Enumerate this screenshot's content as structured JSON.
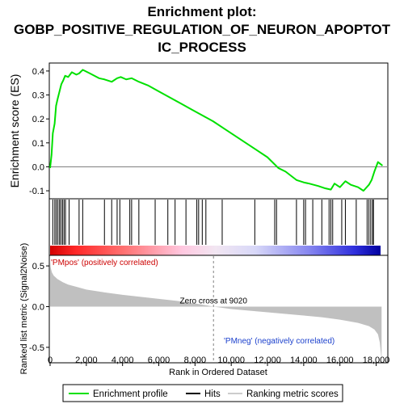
{
  "title_lines": [
    "Enrichment plot:",
    "GOBP_POSITIVE_REGULATION_OF_NEURON_APOPTOT",
    "IC_PROCESS"
  ],
  "colors": {
    "profile": "#00e000",
    "hits": "#000000",
    "metric_fill": "#c0c0c0",
    "zero_line": "#808080",
    "pos_text": "#cc0000",
    "neg_text": "#1a3fcc"
  },
  "chart_data": [
    {
      "type": "line",
      "name": "enrichment-profile",
      "ylabel": "Enrichment score (ES)",
      "xlim": [
        0,
        18600
      ],
      "ylim": [
        -0.13,
        0.43
      ],
      "yticks": [
        -0.1,
        0.0,
        0.1,
        0.2,
        0.3,
        0.4
      ],
      "ytick_labels": [
        "-0.1",
        "0.0",
        "0.1",
        "0.2",
        "0.3",
        "0.4"
      ],
      "x": [
        0,
        80,
        150,
        250,
        330,
        420,
        520,
        620,
        720,
        830,
        1000,
        1200,
        1450,
        1600,
        1800,
        2200,
        2700,
        3000,
        3400,
        3700,
        3900,
        4200,
        4500,
        4900,
        5400,
        6000,
        6600,
        7200,
        7800,
        8400,
        9000,
        9600,
        10200,
        10800,
        11400,
        12000,
        12400,
        12600,
        13000,
        13600,
        14000,
        14300,
        14800,
        15200,
        15500,
        15700,
        16000,
        16300,
        16600,
        17000,
        17300,
        17600,
        17750,
        17900,
        18100,
        18350
      ],
      "y": [
        -0.005,
        0.05,
        0.14,
        0.18,
        0.255,
        0.285,
        0.315,
        0.345,
        0.36,
        0.38,
        0.375,
        0.395,
        0.385,
        0.39,
        0.405,
        0.39,
        0.37,
        0.365,
        0.355,
        0.37,
        0.375,
        0.365,
        0.37,
        0.355,
        0.34,
        0.315,
        0.29,
        0.265,
        0.24,
        0.215,
        0.19,
        0.16,
        0.13,
        0.1,
        0.07,
        0.04,
        0.01,
        -0.005,
        -0.02,
        -0.055,
        -0.065,
        -0.07,
        -0.08,
        -0.09,
        -0.095,
        -0.07,
        -0.085,
        -0.06,
        -0.075,
        -0.085,
        -0.1,
        -0.075,
        -0.055,
        -0.02,
        0.02,
        0.005
      ],
      "hits_x": [
        150,
        260,
        340,
        430,
        520,
        600,
        690,
        770,
        850,
        1050,
        1600,
        1800,
        3000,
        3400,
        3700,
        3850,
        4400,
        4500,
        4900,
        5800,
        6500,
        6900,
        7500,
        8100,
        8200,
        8400,
        8600,
        9500,
        11300,
        12400,
        12500,
        13600,
        14000,
        14100,
        14500,
        15000,
        15400,
        15500,
        15600,
        16100,
        16300,
        16900,
        17500,
        17600,
        17700,
        17800,
        17850
      ]
    },
    {
      "type": "area",
      "name": "ranked-list-metric",
      "ylabel": "Ranked list metric (Signal2Noise)",
      "xlabel": "Rank in Ordered Dataset",
      "xlim": [
        0,
        18600
      ],
      "ylim": [
        -0.68,
        0.62
      ],
      "yticks": [
        -0.5,
        0.0,
        0.5
      ],
      "ytick_labels": [
        "-0.5",
        "0.0",
        "0.5"
      ],
      "xticks": [
        0,
        2000,
        4000,
        6000,
        8000,
        10000,
        12000,
        14000,
        16000,
        18000
      ],
      "xtick_labels": [
        "0",
        "2,000",
        "4,000",
        "6,000",
        "8,000",
        "10,000",
        "12,000",
        "14,000",
        "16,000",
        "18,000"
      ],
      "x": [
        0,
        30,
        100,
        200,
        400,
        700,
        1000,
        1500,
        2000,
        3000,
        4000,
        5000,
        6000,
        7000,
        8000,
        9020,
        10000,
        11000,
        12000,
        13000,
        14000,
        15000,
        16000,
        17000,
        17600,
        17900,
        18100,
        18200,
        18300
      ],
      "y": [
        0.56,
        0.48,
        0.42,
        0.38,
        0.34,
        0.3,
        0.27,
        0.24,
        0.21,
        0.175,
        0.145,
        0.12,
        0.095,
        0.07,
        0.04,
        0.0,
        -0.03,
        -0.05,
        -0.07,
        -0.09,
        -0.11,
        -0.13,
        -0.16,
        -0.2,
        -0.24,
        -0.28,
        -0.34,
        -0.44,
        -0.66
      ],
      "zero_cross_label": "Zero cross at 9020",
      "zero_cross_x": 9020,
      "pos_label": "'PMpos' (positively correlated)",
      "neg_label": "'PMneg' (negatively correlated)"
    }
  ],
  "legend": {
    "items": [
      {
        "label": "Enrichment profile",
        "kind": "line-green"
      },
      {
        "label": "Hits",
        "kind": "line-black"
      },
      {
        "label": "Ranking metric scores",
        "kind": "line-gray"
      }
    ]
  }
}
